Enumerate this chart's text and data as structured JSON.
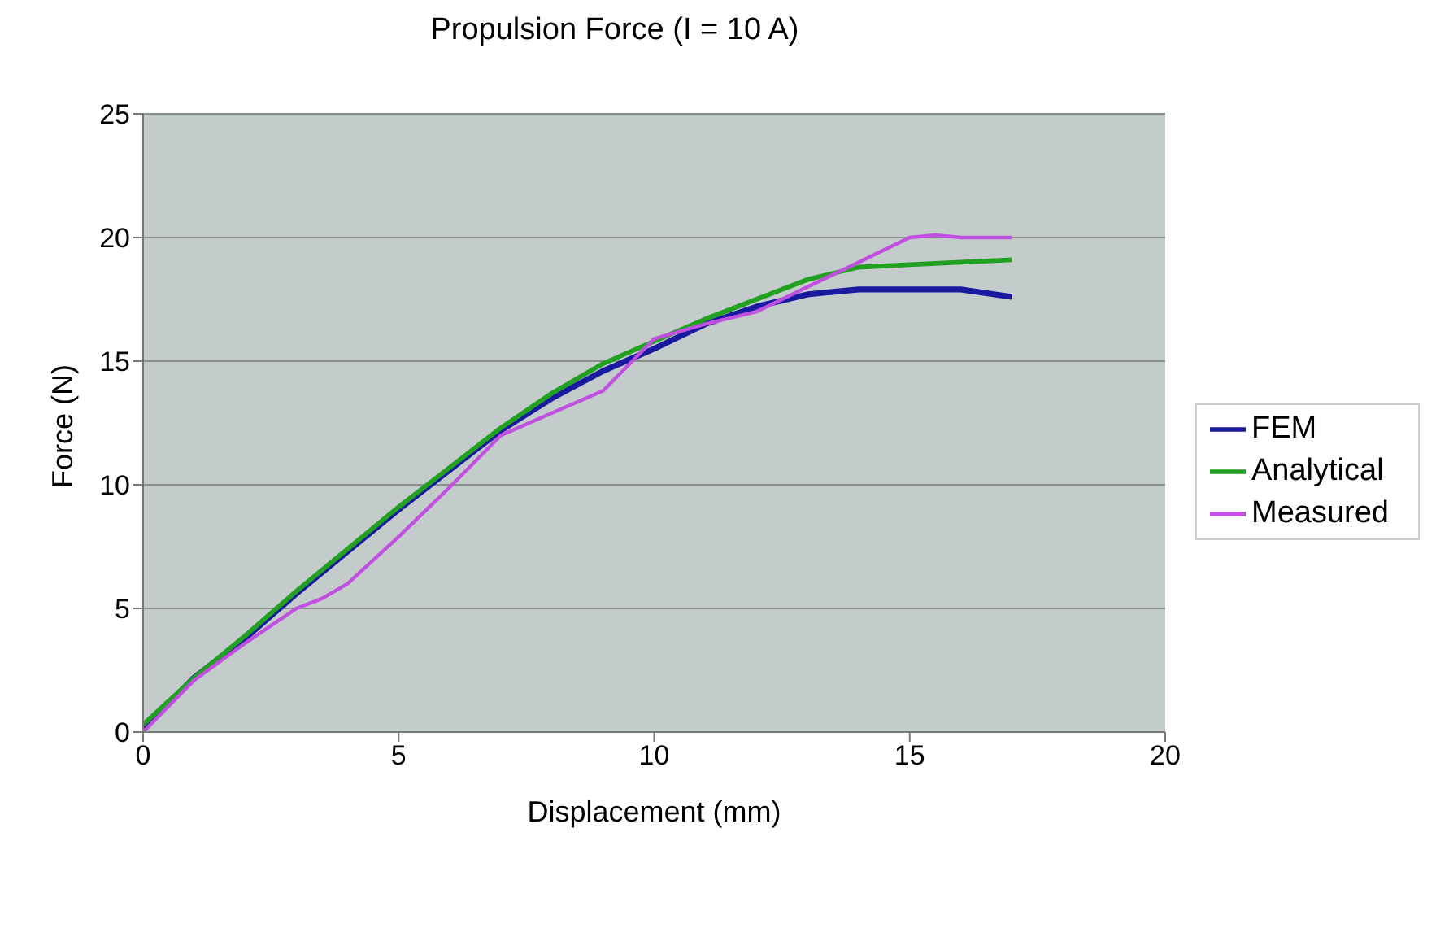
{
  "chart_data": {
    "type": "line",
    "title": "Propulsion Force (I = 10 A)",
    "xlabel": "Displacement (mm)",
    "ylabel": "Force (N)",
    "x": [
      0,
      1,
      2,
      3,
      4,
      5,
      6,
      7,
      8,
      9,
      10,
      11,
      12,
      13,
      14,
      15,
      16,
      17
    ],
    "series": [
      {
        "name": "FEM",
        "color": "#1a1aa0",
        "values": [
          0.1,
          2.2,
          3.8,
          5.6,
          7.3,
          9.0,
          10.6,
          12.2,
          13.5,
          14.6,
          15.5,
          16.5,
          17.2,
          17.7,
          17.9,
          17.9,
          17.9,
          17.6
        ]
      },
      {
        "name": "Analytical",
        "color": "#22a022",
        "values": [
          0.3,
          2.2,
          3.9,
          5.7,
          7.4,
          9.1,
          10.7,
          12.3,
          13.7,
          14.9,
          15.8,
          16.7,
          17.5,
          18.3,
          18.8,
          18.9,
          19.0,
          19.1
        ]
      },
      {
        "name": "Measured",
        "color": "#c050e0",
        "x": [
          0,
          1,
          2,
          3,
          3.5,
          4,
          5,
          6,
          7,
          8,
          9,
          10,
          11,
          12,
          13,
          14,
          15,
          15.5,
          16,
          17
        ],
        "values": [
          0,
          2.1,
          3.6,
          5.0,
          5.4,
          6.0,
          7.9,
          9.9,
          12.0,
          12.9,
          13.8,
          15.9,
          16.5,
          17.0,
          18.0,
          19.0,
          20.0,
          20.1,
          20.0,
          20.0
        ]
      }
    ],
    "xlim": [
      0,
      20
    ],
    "xticks": [
      0,
      5,
      10,
      15,
      20
    ],
    "ylim": [
      0,
      25
    ],
    "yticks": [
      0,
      5,
      10,
      15,
      20,
      25
    ],
    "grid": "y",
    "legend": "right",
    "marker": "none",
    "line_style": "solid"
  }
}
